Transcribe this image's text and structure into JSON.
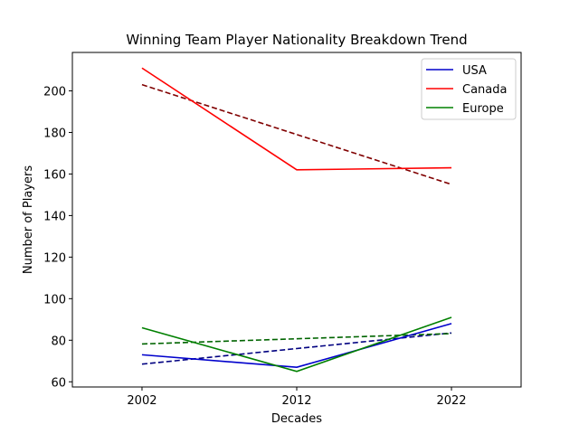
{
  "chart_data": {
    "type": "line",
    "title": "Winning Team Player Nationality Breakdown Trend",
    "xlabel": "Decades",
    "ylabel": "Number of Players",
    "x": [
      2002,
      2012,
      2022
    ],
    "xticks": [
      2002,
      2012,
      2022
    ],
    "yticks": [
      60,
      80,
      100,
      120,
      140,
      160,
      180,
      200
    ],
    "xlim": [
      1997.5,
      2026.5
    ],
    "ylim": [
      57.5,
      218.5
    ],
    "grid": false,
    "legend_position": "top-right",
    "series": [
      {
        "name": "USA",
        "values": [
          73,
          67,
          88
        ],
        "color": "#0000cc",
        "trend": [
          68.5,
          76.0,
          83.5
        ],
        "trend_color": "#000080"
      },
      {
        "name": "Canada",
        "values": [
          211,
          162,
          163
        ],
        "color": "#ff0000",
        "trend": [
          203,
          179,
          155
        ],
        "trend_color": "#800000"
      },
      {
        "name": "Europe",
        "values": [
          86,
          65,
          91
        ],
        "color": "#008000",
        "trend": [
          78.2,
          80.7,
          83.2
        ],
        "trend_color": "#006400"
      }
    ]
  }
}
